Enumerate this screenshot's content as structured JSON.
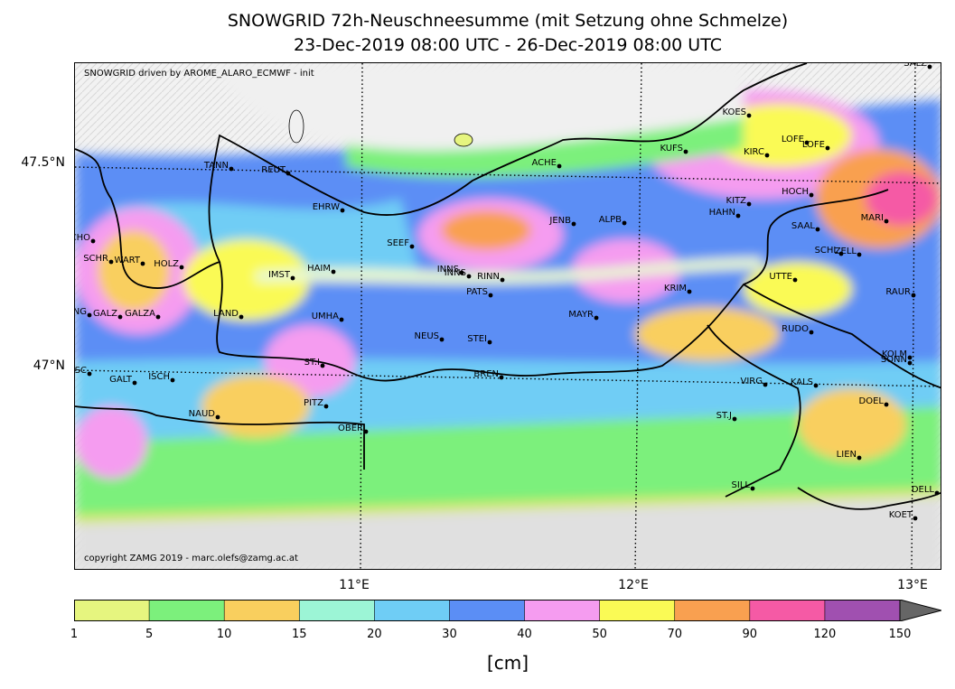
{
  "title_line1": "SNOWGRID 72h-Neuschneesumme (mit Setzung ohne Schmelze)",
  "title_line2": "23-Dec-2019 08:00 UTC - 26-Dec-2019 08:00 UTC",
  "note_top": "SNOWGRID driven by AROME_ALARO_ECMWF - init",
  "note_bottom": "copyright ZAMG 2019 - marc.olefs@zamg.ac.at",
  "lat_labels": [
    "47.5°N",
    "47°N"
  ],
  "lon_labels": [
    "11°E",
    "12°E",
    "13°E"
  ],
  "unit": "[cm]",
  "colorbar": {
    "ticks": [
      "1",
      "5",
      "10",
      "15",
      "20",
      "30",
      "40",
      "50",
      "70",
      "90",
      "120",
      "150"
    ],
    "colors": [
      "#e6f57f",
      "#7cf07c",
      "#f9cf5e",
      "#9cf5d6",
      "#6fcdf5",
      "#5b8ef5",
      "#f59cf0",
      "#fafa55",
      "#f9a050",
      "#f55aa5",
      "#a050b0"
    ],
    "overflow_color": "#666666"
  },
  "stations": [
    {
      "name": "SALZ"
    },
    {
      "name": "KOES"
    },
    {
      "name": "KUFS"
    },
    {
      "name": "KIRC"
    },
    {
      "name": "LOFE"
    },
    {
      "name": "LOFE"
    },
    {
      "name": "TANN"
    },
    {
      "name": "REUT"
    },
    {
      "name": "ACHE"
    },
    {
      "name": "HOCH"
    },
    {
      "name": "KITZ"
    },
    {
      "name": "HAHN"
    },
    {
      "name": "EHRW"
    },
    {
      "name": "JENB"
    },
    {
      "name": "ALPB"
    },
    {
      "name": "MARI"
    },
    {
      "name": "SAAL"
    },
    {
      "name": "SCHO"
    },
    {
      "name": "SEEF"
    },
    {
      "name": "SCHL"
    },
    {
      "name": "ZELL"
    },
    {
      "name": "SCHR"
    },
    {
      "name": "WART"
    },
    {
      "name": "HOLZ"
    },
    {
      "name": "HAIM"
    },
    {
      "name": "INNS"
    },
    {
      "name": "INNS"
    },
    {
      "name": "RINN"
    },
    {
      "name": "UTTE"
    },
    {
      "name": "IMST"
    },
    {
      "name": "PATS"
    },
    {
      "name": "KRIM"
    },
    {
      "name": "RAUR"
    },
    {
      "name": "LANG"
    },
    {
      "name": "GALZ"
    },
    {
      "name": "GALZA"
    },
    {
      "name": "LAND"
    },
    {
      "name": "UMHA"
    },
    {
      "name": "MAYR"
    },
    {
      "name": "NEUS"
    },
    {
      "name": "STEI"
    },
    {
      "name": "RUDO"
    },
    {
      "name": "KOLM"
    },
    {
      "name": "SONN"
    },
    {
      "name": "ST.I"
    },
    {
      "name": "GASC"
    },
    {
      "name": "BREN"
    },
    {
      "name": "GALT"
    },
    {
      "name": "ISCH"
    },
    {
      "name": "VIRG"
    },
    {
      "name": "KALS"
    },
    {
      "name": "DOEL"
    },
    {
      "name": "PITZ"
    },
    {
      "name": "NAUD"
    },
    {
      "name": "ST.J"
    },
    {
      "name": "OBER"
    },
    {
      "name": "LIEN"
    },
    {
      "name": "SILL"
    },
    {
      "name": "DELL"
    },
    {
      "name": "KOET"
    }
  ]
}
